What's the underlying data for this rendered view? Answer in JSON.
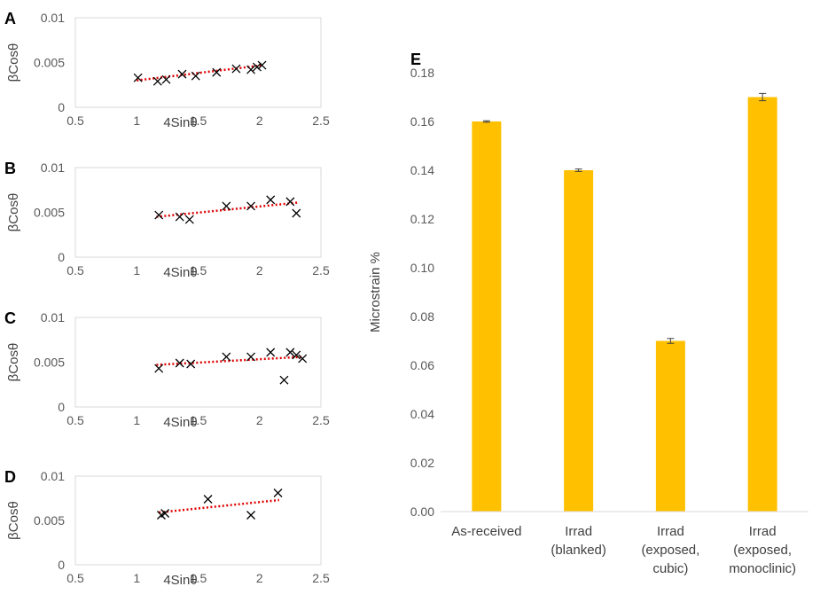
{
  "colors": {
    "bar": "#ffc000",
    "marker": "#000000",
    "trendline": "#e00000",
    "axis": "#d9d9d9",
    "text": "#595959",
    "errorbar": "#404040"
  },
  "chart_data": [
    {
      "panel": "A",
      "type": "scatter",
      "xlabel": "4Sinθ",
      "ylabel": "βCosθ",
      "xlim": [
        0.5,
        2.5
      ],
      "ylim": [
        0,
        0.01
      ],
      "xticks": [
        "0.5",
        "1",
        "1.5",
        "2",
        "2.5"
      ],
      "yticks": [
        "0",
        "0.005",
        "0.01"
      ],
      "points": [
        {
          "x": 1.01,
          "y": 0.0033
        },
        {
          "x": 1.17,
          "y": 0.0029
        },
        {
          "x": 1.24,
          "y": 0.0031
        },
        {
          "x": 1.37,
          "y": 0.0037
        },
        {
          "x": 1.48,
          "y": 0.0035
        },
        {
          "x": 1.65,
          "y": 0.0039
        },
        {
          "x": 1.81,
          "y": 0.0043
        },
        {
          "x": 1.93,
          "y": 0.0042
        },
        {
          "x": 1.98,
          "y": 0.0045
        },
        {
          "x": 2.02,
          "y": 0.0047
        }
      ],
      "trendline": {
        "x": [
          1.0,
          2.03
        ],
        "y": [
          0.003,
          0.0047
        ]
      }
    },
    {
      "panel": "B",
      "type": "scatter",
      "xlabel": "4Sinθ",
      "ylabel": "βCosθ",
      "xlim": [
        0.5,
        2.5
      ],
      "ylim": [
        0,
        0.01
      ],
      "xticks": [
        "0.5",
        "1",
        "1.5",
        "2",
        "2.5"
      ],
      "yticks": [
        "0",
        "0.005",
        "0.01"
      ],
      "points": [
        {
          "x": 1.18,
          "y": 0.0047
        },
        {
          "x": 1.35,
          "y": 0.0045
        },
        {
          "x": 1.43,
          "y": 0.0042
        },
        {
          "x": 1.73,
          "y": 0.0057
        },
        {
          "x": 1.93,
          "y": 0.0057
        },
        {
          "x": 2.09,
          "y": 0.0064
        },
        {
          "x": 2.25,
          "y": 0.0062
        },
        {
          "x": 2.3,
          "y": 0.0049
        }
      ],
      "trendline": {
        "x": [
          1.16,
          2.32
        ],
        "y": [
          0.0045,
          0.0061
        ]
      }
    },
    {
      "panel": "C",
      "type": "scatter",
      "xlabel": "4Sinθ",
      "ylabel": "βCosθ",
      "xlim": [
        0.5,
        2.5
      ],
      "ylim": [
        0,
        0.01
      ],
      "xticks": [
        "0.5",
        "1",
        "1.5",
        "2",
        "2.5"
      ],
      "yticks": [
        "0",
        "0.005",
        "0.01"
      ],
      "points": [
        {
          "x": 1.18,
          "y": 0.0043
        },
        {
          "x": 1.35,
          "y": 0.0049
        },
        {
          "x": 1.44,
          "y": 0.0048
        },
        {
          "x": 1.73,
          "y": 0.0056
        },
        {
          "x": 1.93,
          "y": 0.0056
        },
        {
          "x": 2.09,
          "y": 0.0061
        },
        {
          "x": 2.2,
          "y": 0.003
        },
        {
          "x": 2.25,
          "y": 0.0061
        },
        {
          "x": 2.3,
          "y": 0.0058
        },
        {
          "x": 2.35,
          "y": 0.0054
        }
      ],
      "trendline": {
        "x": [
          1.16,
          2.36
        ],
        "y": [
          0.0047,
          0.0056
        ]
      }
    },
    {
      "panel": "D",
      "type": "scatter",
      "xlabel": "4Sinθ",
      "ylabel": "βCosθ",
      "xlim": [
        0.5,
        2.5
      ],
      "ylim": [
        0,
        0.01
      ],
      "xticks": [
        "0.5",
        "1",
        "1.5",
        "2",
        "2.5"
      ],
      "yticks": [
        "0",
        "0.005",
        "0.01"
      ],
      "points": [
        {
          "x": 1.2,
          "y": 0.0056
        },
        {
          "x": 1.23,
          "y": 0.0058
        },
        {
          "x": 1.58,
          "y": 0.0074
        },
        {
          "x": 1.93,
          "y": 0.0056
        },
        {
          "x": 2.15,
          "y": 0.0081
        }
      ],
      "trendline": {
        "x": [
          1.18,
          2.16
        ],
        "y": [
          0.0059,
          0.0073
        ]
      }
    },
    {
      "panel": "E",
      "type": "bar",
      "xlabel": "",
      "ylabel": "Microstrain %",
      "ylim": [
        0,
        0.18
      ],
      "yticks": [
        "0.00",
        "0.02",
        "0.04",
        "0.06",
        "0.08",
        "0.10",
        "0.12",
        "0.14",
        "0.16",
        "0.18"
      ],
      "categories": [
        [
          "As-received"
        ],
        [
          "Irrad",
          "(blanked)"
        ],
        [
          "Irrad",
          "(exposed,",
          "cubic)"
        ],
        [
          "Irrad",
          "(exposed,",
          "monoclinic)"
        ]
      ],
      "values": [
        0.16,
        0.14,
        0.07,
        0.17
      ],
      "errors": [
        0.0003,
        0.0005,
        0.001,
        0.0015
      ]
    }
  ]
}
